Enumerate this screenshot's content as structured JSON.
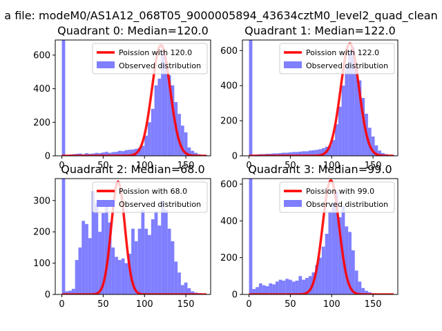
{
  "suptitle": "a file: modeM0/AS1A12_068T05_9000005894_43634cztM0_level2_quad_clean",
  "colors": {
    "observed": "#7f7fff",
    "poisson": "#ff0000",
    "axes": "#000000"
  },
  "chart_data": [
    {
      "type": "bar",
      "title": "Quadrant 0: Median=120.0",
      "xlim": [
        -8,
        180
      ],
      "ylim": [
        0,
        690
      ],
      "xticks": [
        0,
        50,
        100,
        150
      ],
      "yticks": [
        0,
        200,
        400,
        600
      ],
      "legend": [
        "Poission with 120.0",
        "Observed distribution"
      ],
      "legend_position": "top-right",
      "bin_width": 4,
      "bin_starts": [
        0,
        4,
        8,
        12,
        16,
        20,
        24,
        28,
        32,
        36,
        40,
        44,
        48,
        52,
        56,
        60,
        64,
        68,
        72,
        76,
        80,
        84,
        88,
        92,
        96,
        100,
        104,
        108,
        112,
        116,
        120,
        124,
        128,
        132,
        136,
        140,
        144,
        148,
        152,
        156,
        160,
        164,
        168,
        172
      ],
      "observed": [
        690,
        5,
        8,
        10,
        12,
        14,
        10,
        16,
        12,
        14,
        18,
        16,
        20,
        24,
        18,
        22,
        24,
        30,
        28,
        34,
        36,
        38,
        42,
        48,
        60,
        120,
        200,
        280,
        420,
        460,
        620,
        560,
        480,
        420,
        320,
        250,
        180,
        140,
        50,
        30,
        18,
        10,
        6,
        4
      ],
      "poisson_mean": 120,
      "poisson_peak": 660
    },
    {
      "type": "bar",
      "title": "Quadrant 1: Median=122.0",
      "xlim": [
        -8,
        180
      ],
      "ylim": [
        0,
        660
      ],
      "xticks": [
        0,
        50,
        100,
        150
      ],
      "yticks": [
        0,
        200,
        400,
        600
      ],
      "legend": [
        "Poission with 122.0",
        "Observed distribution"
      ],
      "legend_position": "top-right",
      "bin_width": 4,
      "bin_starts": [
        0,
        4,
        8,
        12,
        16,
        20,
        24,
        28,
        32,
        36,
        40,
        44,
        48,
        52,
        56,
        60,
        64,
        68,
        72,
        76,
        80,
        84,
        88,
        92,
        96,
        100,
        104,
        108,
        112,
        116,
        120,
        124,
        128,
        132,
        136,
        140,
        144,
        148,
        152,
        156,
        160,
        164,
        168,
        172
      ],
      "observed": [
        660,
        6,
        8,
        10,
        10,
        12,
        12,
        14,
        14,
        16,
        18,
        18,
        20,
        22,
        22,
        24,
        26,
        26,
        30,
        32,
        34,
        38,
        44,
        52,
        60,
        90,
        180,
        280,
        400,
        520,
        600,
        620,
        500,
        430,
        330,
        240,
        160,
        110,
        60,
        30,
        16,
        10,
        6,
        4
      ],
      "poisson_mean": 122,
      "poisson_peak": 640
    },
    {
      "type": "bar",
      "title": "Quadrant 2: Median=68.0",
      "xlim": [
        -8,
        180
      ],
      "ylim": [
        0,
        370
      ],
      "xticks": [
        0,
        50,
        100,
        150
      ],
      "yticks": [
        0,
        100,
        200,
        300
      ],
      "legend": [
        "Poission with 68.0",
        "Observed distribution"
      ],
      "legend_position": "top-right",
      "bin_width": 4,
      "bin_starts": [
        0,
        4,
        8,
        12,
        16,
        20,
        24,
        28,
        32,
        36,
        40,
        44,
        48,
        52,
        56,
        60,
        64,
        68,
        72,
        76,
        80,
        84,
        88,
        92,
        96,
        100,
        104,
        108,
        112,
        116,
        120,
        124,
        128,
        132,
        136,
        140,
        144,
        148,
        152,
        156,
        160,
        164,
        168,
        172
      ],
      "observed": [
        370,
        10,
        12,
        18,
        110,
        150,
        235,
        225,
        180,
        330,
        290,
        200,
        260,
        290,
        230,
        150,
        120,
        110,
        115,
        100,
        130,
        210,
        170,
        210,
        270,
        210,
        190,
        240,
        265,
        220,
        300,
        270,
        210,
        170,
        105,
        70,
        30,
        38,
        20,
        10,
        6,
        4,
        2,
        0
      ],
      "poisson_mean": 68,
      "poisson_peak": 360
    },
    {
      "type": "bar",
      "title": "Quadrant 3: Median=99.0",
      "xlim": [
        -8,
        180
      ],
      "ylim": [
        0,
        630
      ],
      "xticks": [
        0,
        50,
        100,
        150
      ],
      "yticks": [
        0,
        200,
        400,
        600
      ],
      "legend": [
        "Poission with 99.0",
        "Observed distribution"
      ],
      "legend_position": "top-right",
      "bin_width": 4,
      "bin_starts": [
        0,
        4,
        8,
        12,
        16,
        20,
        24,
        28,
        32,
        36,
        40,
        44,
        48,
        52,
        56,
        60,
        64,
        68,
        72,
        76,
        80,
        84,
        88,
        92,
        96,
        100,
        104,
        108,
        112,
        116,
        120,
        124,
        128,
        132,
        136,
        140,
        144,
        148,
        152,
        156,
        160,
        164,
        168,
        172
      ],
      "observed": [
        630,
        30,
        40,
        60,
        50,
        45,
        60,
        55,
        70,
        80,
        75,
        85,
        80,
        70,
        75,
        100,
        80,
        90,
        100,
        120,
        160,
        200,
        260,
        330,
        450,
        500,
        560,
        420,
        480,
        370,
        340,
        240,
        130,
        70,
        35,
        20,
        12,
        6,
        4,
        0,
        0,
        0,
        0,
        0
      ],
      "poisson_mean": 99,
      "poisson_peak": 620
    }
  ]
}
